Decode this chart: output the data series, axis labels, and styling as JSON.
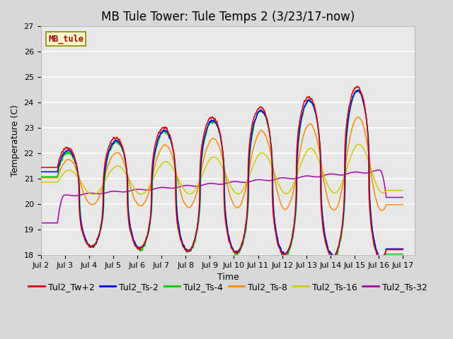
{
  "title": "MB Tule Tower: Tule Temps 2 (3/23/17-now)",
  "xlabel": "Time",
  "ylabel": "Temperature (C)",
  "ylim": [
    18.0,
    27.0
  ],
  "yticks": [
    18.0,
    19.0,
    20.0,
    21.0,
    22.0,
    23.0,
    24.0,
    25.0,
    26.0,
    27.0
  ],
  "xtick_labels": [
    "Jul 2",
    "Jul 3",
    "Jul 4",
    "Jul 5",
    "Jul 6",
    "Jul 7",
    "Jul 8",
    "Jul 9",
    "Jul 10",
    "Jul 11",
    "Jul 12",
    "Jul 13",
    "Jul 14",
    "Jul 15",
    "Jul 16",
    "Jul 17"
  ],
  "legend_labels": [
    "Tul2_Tw+2",
    "Tul2_Ts-2",
    "Tul2_Ts-4",
    "Tul2_Ts-8",
    "Tul2_Ts-16",
    "Tul2_Ts-32"
  ],
  "legend_colors": [
    "#dd0000",
    "#0000ee",
    "#00cc00",
    "#ff8800",
    "#cccc00",
    "#aa00aa"
  ],
  "station_label": "MB_tule",
  "station_box_color": "#ffffcc",
  "station_box_edge": "#888800",
  "station_text_color": "#990000",
  "bg_color": "#d8d8d8",
  "plot_bg_color": "#e8e8e8",
  "grid_color": "#ffffff",
  "linewidth": 1.1,
  "title_fontsize": 12,
  "axis_label_fontsize": 9,
  "tick_fontsize": 8,
  "legend_fontsize": 9
}
